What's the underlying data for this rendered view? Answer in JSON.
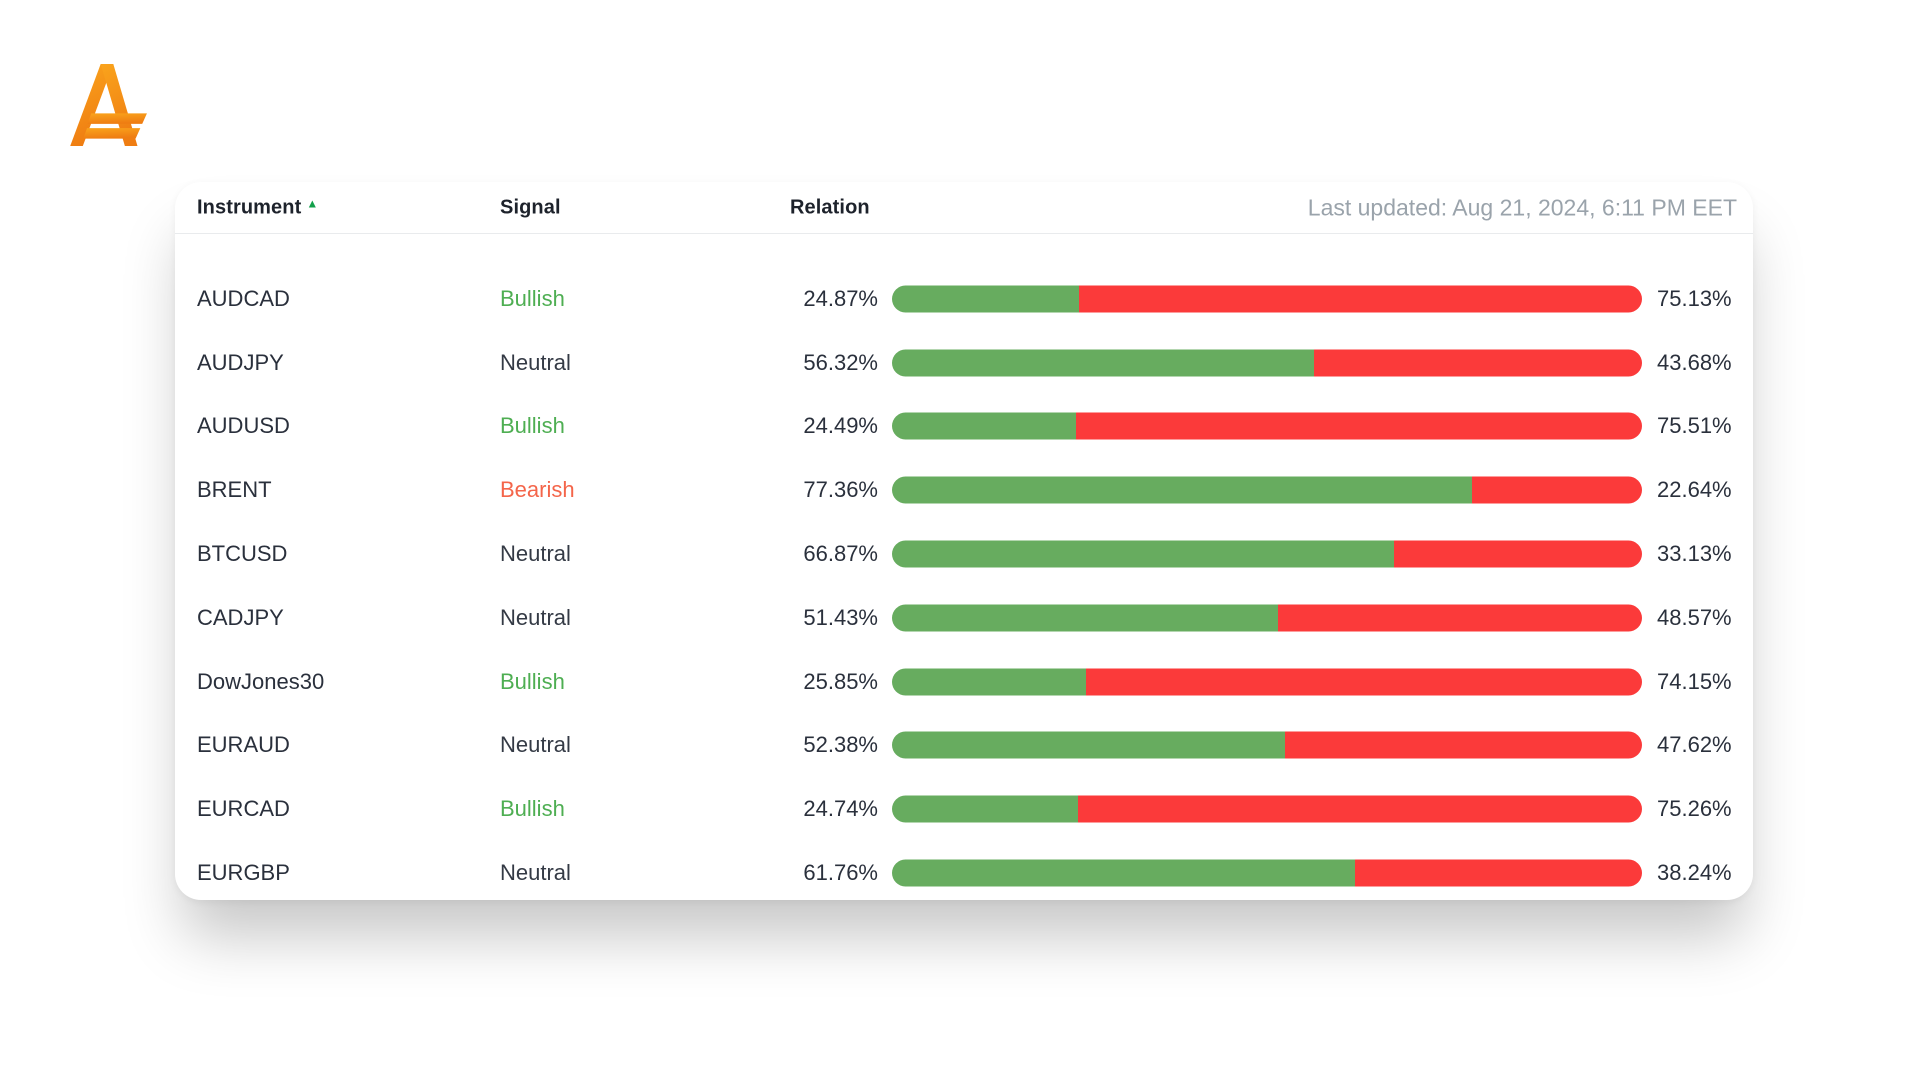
{
  "brand": {
    "logo_icon": "a-currency-logo",
    "logo_gradient": [
      "#faa41c",
      "#ef7d12"
    ]
  },
  "table": {
    "columns": {
      "instrument": "Instrument",
      "signal": "Signal",
      "relation": "Relation"
    },
    "sort_icon": "▲",
    "sort_icon_color": "#13a04b",
    "last_updated": "Last updated: Aug 21, 2024, 6:11 PM EET",
    "rows": [
      {
        "instrument": "AUDCAD",
        "signal": "Bullish",
        "bullish": "24.87%",
        "bearish": "75.13%"
      },
      {
        "instrument": "AUDJPY",
        "signal": "Neutral",
        "bullish": "56.32%",
        "bearish": "43.68%"
      },
      {
        "instrument": "AUDUSD",
        "signal": "Bullish",
        "bullish": "24.49%",
        "bearish": "75.51%"
      },
      {
        "instrument": "BRENT",
        "signal": "Bearish",
        "bullish": "77.36%",
        "bearish": "22.64%"
      },
      {
        "instrument": "BTCUSD",
        "signal": "Neutral",
        "bullish": "66.87%",
        "bearish": "33.13%"
      },
      {
        "instrument": "CADJPY",
        "signal": "Neutral",
        "bullish": "51.43%",
        "bearish": "48.57%"
      },
      {
        "instrument": "DowJones30",
        "signal": "Bullish",
        "bullish": "25.85%",
        "bearish": "74.15%"
      },
      {
        "instrument": "EURAUD",
        "signal": "Neutral",
        "bullish": "52.38%",
        "bearish": "47.62%"
      },
      {
        "instrument": "EURCAD",
        "signal": "Bullish",
        "bullish": "24.74%",
        "bearish": "75.26%"
      },
      {
        "instrument": "EURGBP",
        "signal": "Neutral",
        "bullish": "61.76%",
        "bearish": "38.24%"
      }
    ]
  },
  "colors": {
    "bar_green": "#67ac5f",
    "bar_red": "#fb3a3a",
    "signal_bullish": "#4eae52",
    "signal_neutral": "#343a45",
    "signal_bearish": "#f4654a",
    "text_dark": "#2a303c",
    "muted_gray": "#9aa3ab"
  }
}
